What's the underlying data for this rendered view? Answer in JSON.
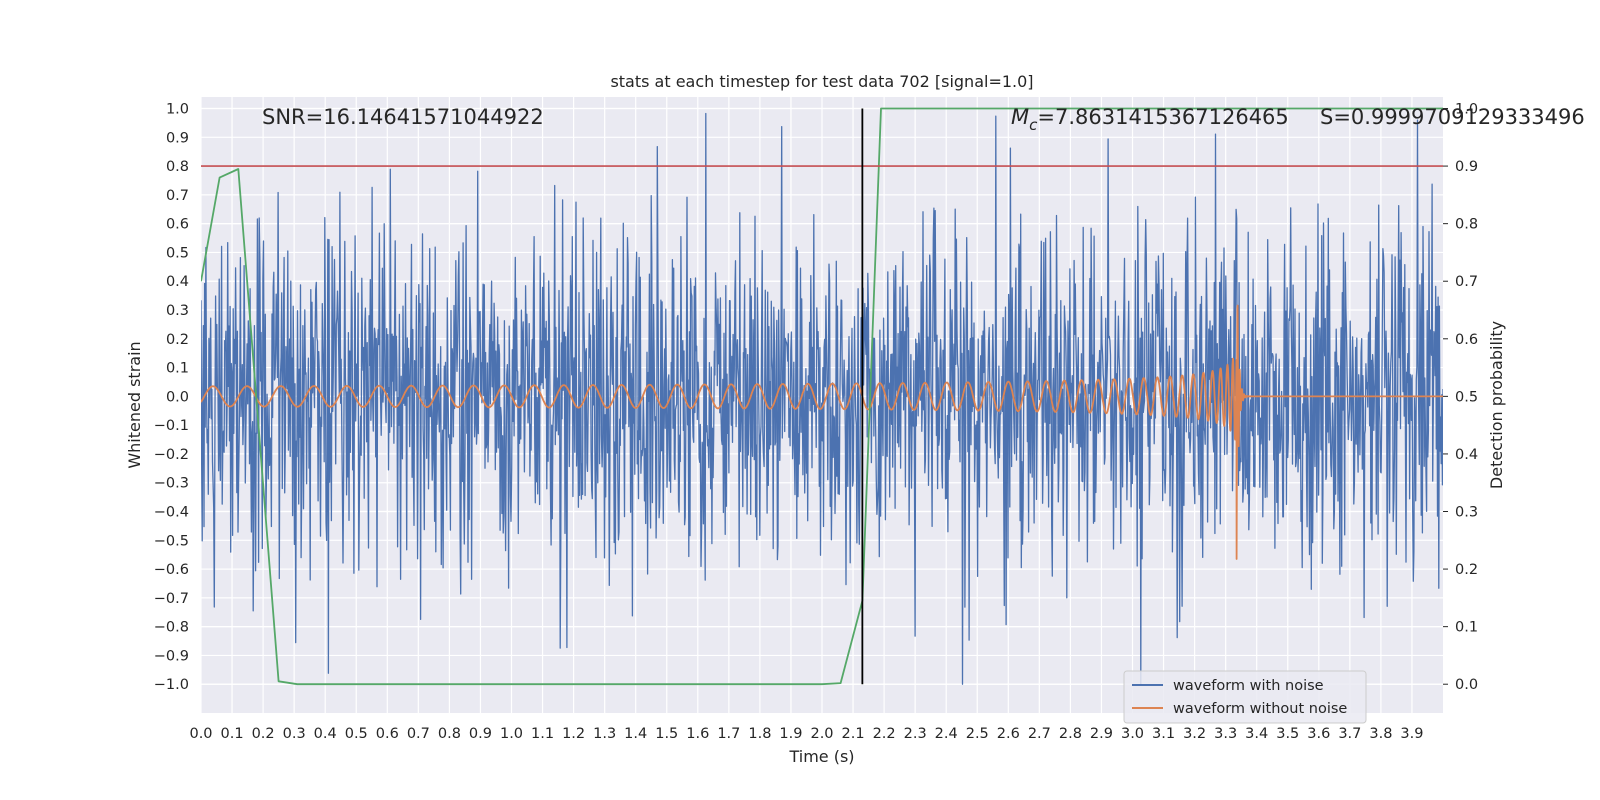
{
  "chart_data": {
    "type": "line",
    "title": "stats at each timestep for test data 702 [signal=1.0]",
    "xlabel": "Time (s)",
    "ylabel": "Whitened strain",
    "y2label": "Detection probability",
    "xlim": [
      0.0,
      4.0
    ],
    "ylim": [
      -1.1,
      1.04
    ],
    "y2lim": [
      -0.05,
      1.02
    ],
    "xticks": [
      "0.0",
      "0.1",
      "0.2",
      "0.3",
      "0.4",
      "0.5",
      "0.6",
      "0.7",
      "0.8",
      "0.9",
      "1.0",
      "1.1",
      "1.2",
      "1.3",
      "1.4",
      "1.5",
      "1.6",
      "1.7",
      "1.8",
      "1.9",
      "2.0",
      "2.1",
      "2.2",
      "2.3",
      "2.4",
      "2.5",
      "2.6",
      "2.7",
      "2.8",
      "2.9",
      "3.0",
      "3.1",
      "3.2",
      "3.3",
      "3.4",
      "3.5",
      "3.6",
      "3.7",
      "3.8",
      "3.9"
    ],
    "yticks": [
      "1.0",
      "0.9",
      "0.8",
      "0.7",
      "0.6",
      "0.5",
      "0.4",
      "0.3",
      "0.2",
      "0.1",
      "0.0",
      "−0.1",
      "−0.2",
      "−0.3",
      "−0.4",
      "−0.5",
      "−0.6",
      "−0.7",
      "−0.8",
      "−0.9",
      "−1.0"
    ],
    "y2ticks": [
      "1.0",
      "0.9",
      "0.8",
      "0.7",
      "0.6",
      "0.5",
      "0.4",
      "0.3",
      "0.2",
      "0.1",
      "0.0"
    ],
    "annotations": {
      "snr": "SNR=16.14641571044922",
      "mc_symbol": "M",
      "mc_sub": "c",
      "mc_value": "=7.8631415367126465",
      "s": "S=0.9999709129333496"
    },
    "threshold": {
      "value": 0.9,
      "axis": "y2",
      "color": "#c44e52"
    },
    "event_time": 2.13,
    "legend": {
      "position": "lower-right",
      "entries": [
        "waveform with noise",
        "waveform without noise"
      ]
    },
    "series": [
      {
        "name": "waveform with noise",
        "color": "#4c72b0",
        "axis": "y",
        "kind": "noise",
        "std": 0.3,
        "max_abs": 1.0
      },
      {
        "name": "waveform without noise",
        "color": "#dd8452",
        "axis": "y",
        "kind": "chirp",
        "start_amplitude": 0.035,
        "peak_amplitude": 0.47,
        "peak_time": 3.33,
        "end_time": 3.335
      },
      {
        "name": "detection probability",
        "color": "#55a868",
        "axis": "y2",
        "points": [
          [
            0.0,
            0.7
          ],
          [
            0.06,
            0.88
          ],
          [
            0.12,
            0.895
          ],
          [
            0.25,
            0.005
          ],
          [
            0.31,
            0.0
          ],
          [
            2.0,
            0.0
          ],
          [
            2.06,
            0.002
          ],
          [
            2.13,
            0.145
          ],
          [
            2.19,
            1.0
          ],
          [
            4.0,
            1.0
          ]
        ]
      }
    ]
  }
}
